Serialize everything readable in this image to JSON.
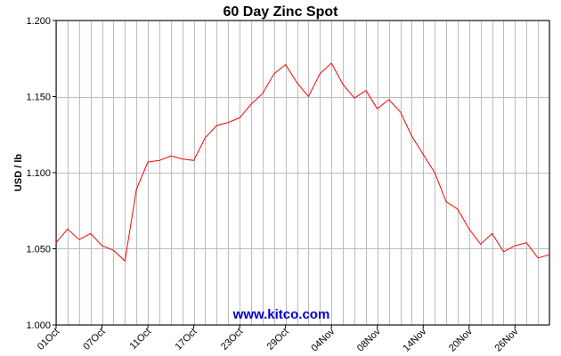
{
  "chart_data": {
    "type": "line",
    "title": "60 Day Zinc Spot",
    "ylabel": "USD / lb",
    "watermark": "www.kitco.com",
    "ylim": [
      1.0,
      1.2
    ],
    "yticks": [
      1.0,
      1.05,
      1.1,
      1.15,
      1.2
    ],
    "ytick_labels": [
      "1.000",
      "1.050",
      "1.100",
      "1.150",
      "1.200"
    ],
    "xlim": [
      0,
      43
    ],
    "xticks": [
      0,
      4,
      8,
      12,
      16,
      20,
      24,
      28,
      32,
      36,
      40
    ],
    "xtick_labels": [
      "01Oct",
      "07Oct",
      "11Oct",
      "17Oct",
      "23Oct",
      "29Oct",
      "04Nov",
      "08Nov",
      "14Nov",
      "20Nov",
      "26Nov"
    ],
    "grid": true,
    "line_color": "#ff0000",
    "series": [
      {
        "x": [
          0,
          1,
          2,
          3,
          4,
          5,
          6,
          7,
          8,
          9,
          10,
          11,
          12,
          13,
          14,
          15,
          16,
          17,
          18,
          19,
          20,
          21,
          22,
          23,
          24,
          25,
          26,
          27,
          28,
          29,
          30,
          31,
          32,
          33,
          34,
          35,
          36,
          37,
          38,
          39,
          40,
          41,
          42,
          43
        ],
        "values": [
          1.054,
          1.063,
          1.056,
          1.06,
          1.052,
          1.049,
          1.042,
          1.089,
          1.107,
          1.108,
          1.111,
          1.109,
          1.108,
          1.123,
          1.131,
          1.133,
          1.136,
          1.145,
          1.152,
          1.165,
          1.171,
          1.159,
          1.15,
          1.165,
          1.172,
          1.158,
          1.149,
          1.154,
          1.142,
          1.148,
          1.14,
          1.124,
          1.112,
          1.1,
          1.081,
          1.076,
          1.063,
          1.053,
          1.06,
          1.048,
          1.052,
          1.054,
          1.044,
          1.046
        ]
      }
    ]
  }
}
